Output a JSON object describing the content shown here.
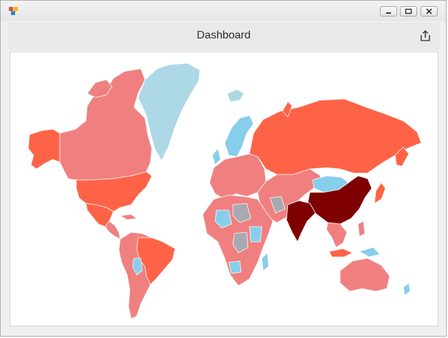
{
  "window": {
    "icon": "app-icon",
    "controls": [
      "minimize-icon",
      "maximize-icon",
      "close-icon"
    ]
  },
  "dashboard": {
    "title": "Dashboard",
    "export_icon": "export-icon"
  },
  "map": {
    "type": "choropleth-world-map",
    "palette": {
      "very_high": "#7f0000",
      "high": "#ff6347",
      "medium": "#f08080",
      "low": "#87ceeb",
      "ice": "#add8e6",
      "no_data": "#a9a9b2"
    },
    "regions": [
      {
        "name": "alaska",
        "level": "high"
      },
      {
        "name": "canada",
        "level": "medium"
      },
      {
        "name": "greenland",
        "level": "ice"
      },
      {
        "name": "usa",
        "level": "high"
      },
      {
        "name": "mexico",
        "level": "high"
      },
      {
        "name": "central-america",
        "level": "medium"
      },
      {
        "name": "south-america",
        "level": "medium"
      },
      {
        "name": "brazil",
        "level": "high"
      },
      {
        "name": "scandinavia",
        "level": "low"
      },
      {
        "name": "europe",
        "level": "medium"
      },
      {
        "name": "russia",
        "level": "high"
      },
      {
        "name": "middle-east",
        "level": "medium"
      },
      {
        "name": "africa",
        "level": "medium"
      },
      {
        "name": "africa-low",
        "level": "low"
      },
      {
        "name": "africa-no-data",
        "level": "no_data"
      },
      {
        "name": "china",
        "level": "very_high"
      },
      {
        "name": "india",
        "level": "very_high"
      },
      {
        "name": "mongolia",
        "level": "low"
      },
      {
        "name": "southeast-asia",
        "level": "medium"
      },
      {
        "name": "australia",
        "level": "medium"
      }
    ]
  }
}
